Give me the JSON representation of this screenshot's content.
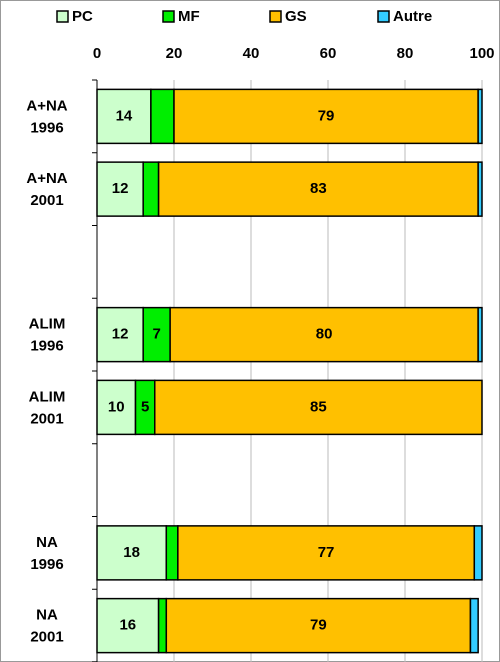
{
  "chart_data": {
    "type": "stacked-bar-horizontal",
    "categories": [
      [
        "A+NA",
        "1996"
      ],
      [
        "A+NA",
        "2001"
      ],
      null,
      [
        "ALIM",
        "1996"
      ],
      [
        "ALIM",
        "2001"
      ],
      null,
      [
        "NA",
        "1996"
      ],
      [
        "NA",
        "2001"
      ]
    ],
    "series": [
      {
        "name": "PC",
        "color": "#ccffcc",
        "values": [
          14,
          12,
          null,
          12,
          10,
          null,
          18,
          16
        ],
        "value_labels": [
          "14",
          "12",
          null,
          "12",
          "10",
          null,
          "18",
          "16"
        ]
      },
      {
        "name": "MF",
        "color": "#00ee00",
        "values": [
          6,
          4,
          null,
          7,
          5,
          null,
          3,
          2
        ],
        "value_labels": [
          null,
          null,
          null,
          "7",
          "5",
          null,
          null,
          null
        ]
      },
      {
        "name": "GS",
        "color": "#ffc000",
        "values": [
          79,
          83,
          null,
          80,
          85,
          null,
          77,
          79
        ],
        "value_labels": [
          "79",
          "83",
          null,
          "80",
          "85",
          null,
          "77",
          "79"
        ]
      },
      {
        "name": "Autre",
        "color": "#33ccff",
        "values": [
          1,
          1,
          null,
          1,
          0,
          null,
          2,
          2
        ],
        "value_labels": [
          null,
          null,
          null,
          null,
          null,
          null,
          null,
          null
        ]
      }
    ],
    "xlim": [
      0,
      100
    ],
    "xticks": [
      0,
      20,
      40,
      60,
      80,
      100
    ],
    "grid": true,
    "legend": "top"
  }
}
